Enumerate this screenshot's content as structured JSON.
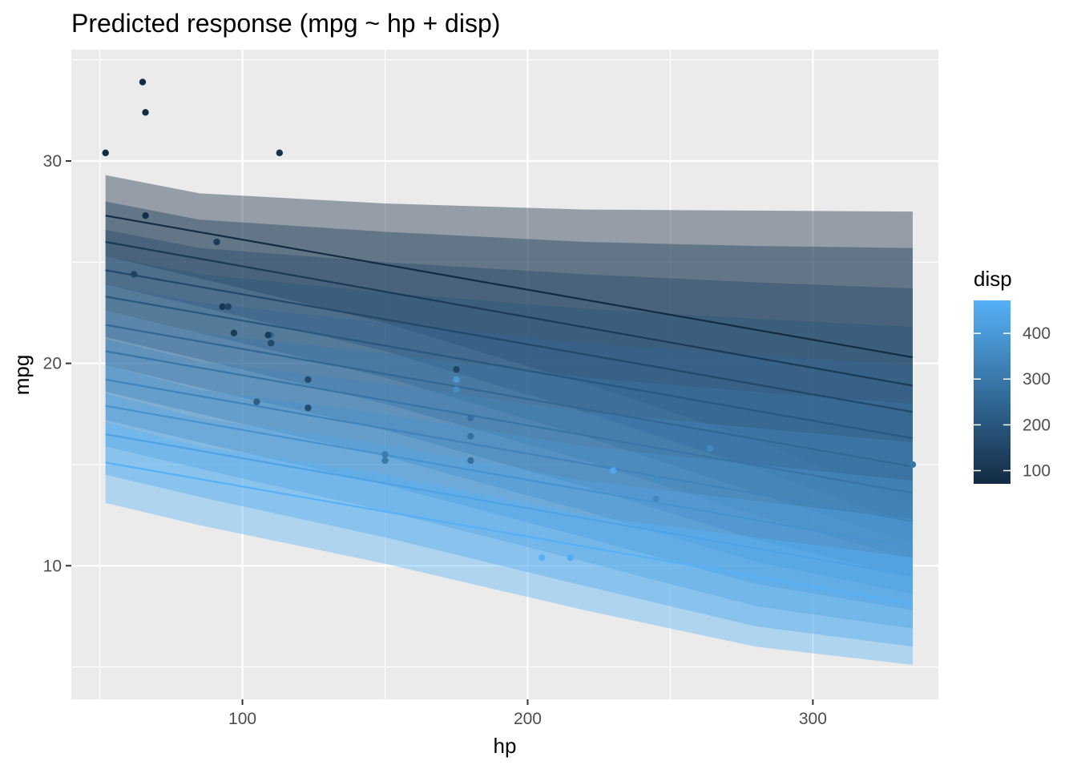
{
  "chart_data": {
    "type": "line",
    "title": "Predicted response (mpg ~ hp + disp)",
    "xlabel": "hp",
    "ylabel": "mpg",
    "xlim": [
      40,
      344
    ],
    "ylim": [
      3.4,
      35.5
    ],
    "x_ticks": [
      100,
      200,
      300
    ],
    "y_ticks": [
      10,
      20,
      30
    ],
    "grid": true,
    "legend": {
      "title": "disp",
      "position": "right",
      "range": [
        71.1,
        472
      ],
      "ticks": [
        100,
        200,
        300,
        400
      ],
      "color_low": "#132B43",
      "color_high": "#56B1F7"
    },
    "prediction_x": [
      52,
      335
    ],
    "prediction_series": [
      {
        "disp": 71.1,
        "fit": [
          27.3,
          20.3
        ],
        "lower_hp": [
          29.3,
          28.4,
          27.9,
          27.6,
          27.55,
          27.5
        ],
        "upper_hp": [
          25.3,
          24.2,
          22.0,
          19.0,
          16.2,
          13.0
        ]
      },
      {
        "disp": 115.7,
        "fit": [
          26.0,
          18.9
        ],
        "lower_hp": [
          28.0,
          27.1,
          26.5,
          26.0,
          25.8,
          25.7
        ],
        "upper_hp": [
          23.9,
          22.8,
          20.6,
          17.6,
          14.8,
          12.0
        ]
      },
      {
        "disp": 160.2,
        "fit": [
          24.6,
          17.6
        ],
        "lower_hp": [
          26.6,
          25.7,
          25.0,
          24.4,
          24.0,
          23.7
        ],
        "upper_hp": [
          22.6,
          21.5,
          19.3,
          16.4,
          13.6,
          11.1
        ]
      },
      {
        "disp": 204.8,
        "fit": [
          23.3,
          16.3
        ],
        "lower_hp": [
          25.3,
          24.4,
          23.5,
          22.7,
          22.2,
          21.8
        ],
        "upper_hp": [
          21.3,
          20.2,
          18.0,
          15.2,
          12.5,
          10.3
        ]
      },
      {
        "disp": 249.4,
        "fit": [
          21.9,
          14.9
        ],
        "lower_hp": [
          23.9,
          23.0,
          22.0,
          21.0,
          20.4,
          19.9
        ],
        "upper_hp": [
          19.9,
          18.8,
          16.7,
          13.9,
          11.3,
          9.4
        ]
      },
      {
        "disp": 293.9,
        "fit": [
          20.6,
          13.6
        ],
        "lower_hp": [
          22.6,
          21.5,
          20.5,
          19.3,
          18.6,
          18.0
        ],
        "upper_hp": [
          18.6,
          17.5,
          15.4,
          12.7,
          10.2,
          8.6
        ]
      },
      {
        "disp": 338.5,
        "fit": [
          19.2,
          12.2
        ],
        "lower_hp": [
          21.2,
          20.1,
          19.0,
          17.6,
          16.8,
          16.1
        ],
        "upper_hp": [
          17.2,
          16.1,
          14.0,
          11.4,
          9.1,
          7.8
        ]
      },
      {
        "disp": 383.1,
        "fit": [
          17.9,
          10.9
        ],
        "lower_hp": [
          19.9,
          18.7,
          17.5,
          15.9,
          15.0,
          14.2
        ],
        "upper_hp": [
          15.9,
          14.8,
          12.7,
          10.2,
          8.0,
          6.9
        ]
      },
      {
        "disp": 427.6,
        "fit": [
          16.5,
          9.5
        ],
        "lower_hp": [
          18.5,
          17.3,
          16.0,
          14.2,
          13.2,
          12.3
        ],
        "upper_hp": [
          14.5,
          13.4,
          11.4,
          9.0,
          7.0,
          6.0
        ]
      },
      {
        "disp": 472.0,
        "fit": [
          15.1,
          8.1
        ],
        "lower_hp": [
          17.1,
          15.9,
          14.5,
          12.5,
          11.4,
          10.4
        ],
        "upper_hp": [
          13.1,
          12.0,
          10.1,
          7.8,
          6.0,
          5.1
        ]
      }
    ],
    "band_hp": [
      52,
      85,
      150,
      220,
      280,
      335
    ],
    "points": [
      {
        "x": 110,
        "y": 21.0,
        "disp": 160
      },
      {
        "x": 110,
        "y": 21.0,
        "disp": 160
      },
      {
        "x": 93,
        "y": 22.8,
        "disp": 108
      },
      {
        "x": 110,
        "y": 21.4,
        "disp": 258
      },
      {
        "x": 175,
        "y": 18.7,
        "disp": 360
      },
      {
        "x": 105,
        "y": 18.1,
        "disp": 225
      },
      {
        "x": 245,
        "y": 14.3,
        "disp": 360
      },
      {
        "x": 62,
        "y": 24.4,
        "disp": 146.7
      },
      {
        "x": 95,
        "y": 22.8,
        "disp": 140.8
      },
      {
        "x": 123,
        "y": 19.2,
        "disp": 167.6
      },
      {
        "x": 123,
        "y": 17.8,
        "disp": 167.6
      },
      {
        "x": 180,
        "y": 16.4,
        "disp": 275.8
      },
      {
        "x": 180,
        "y": 17.3,
        "disp": 275.8
      },
      {
        "x": 180,
        "y": 15.2,
        "disp": 275.8
      },
      {
        "x": 205,
        "y": 10.4,
        "disp": 472
      },
      {
        "x": 215,
        "y": 10.4,
        "disp": 460
      },
      {
        "x": 230,
        "y": 14.7,
        "disp": 440
      },
      {
        "x": 66,
        "y": 32.4,
        "disp": 78.7
      },
      {
        "x": 52,
        "y": 30.4,
        "disp": 75.7
      },
      {
        "x": 65,
        "y": 33.9,
        "disp": 71.1
      },
      {
        "x": 97,
        "y": 21.5,
        "disp": 120.1
      },
      {
        "x": 150,
        "y": 15.5,
        "disp": 318
      },
      {
        "x": 150,
        "y": 15.2,
        "disp": 304
      },
      {
        "x": 245,
        "y": 13.3,
        "disp": 350
      },
      {
        "x": 175,
        "y": 19.2,
        "disp": 400
      },
      {
        "x": 66,
        "y": 27.3,
        "disp": 79
      },
      {
        "x": 91,
        "y": 26.0,
        "disp": 120.3
      },
      {
        "x": 113,
        "y": 30.4,
        "disp": 95.1
      },
      {
        "x": 264,
        "y": 15.8,
        "disp": 351
      },
      {
        "x": 175,
        "y": 19.7,
        "disp": 145
      },
      {
        "x": 335,
        "y": 15.0,
        "disp": 301
      },
      {
        "x": 109,
        "y": 21.4,
        "disp": 121
      }
    ]
  }
}
